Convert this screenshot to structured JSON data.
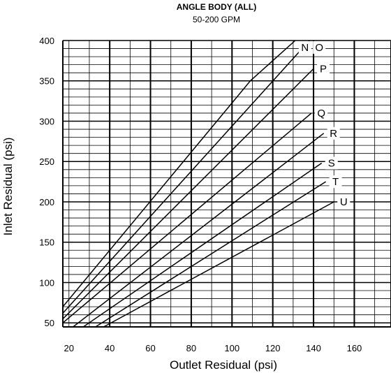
{
  "chart_data": {
    "type": "line",
    "title": "ANGLE BODY (ALL)",
    "subtitle": "50-200 GPM",
    "xlabel": "Outlet Residual (psi)",
    "ylabel": "Inlet Residual (psi)",
    "xlim": [
      17,
      178
    ],
    "ylim": [
      45,
      400
    ],
    "x_ticks": [
      20,
      40,
      60,
      80,
      100,
      120,
      140,
      160
    ],
    "y_ticks": [
      50,
      100,
      150,
      200,
      250,
      300,
      350,
      400
    ],
    "x_major_lines": [
      17,
      40,
      60,
      80,
      100,
      120,
      140,
      160,
      178
    ],
    "x_minor_step": 10,
    "y_minor_step": 10,
    "grid": true,
    "series": [
      {
        "name": "N",
        "points": [
          [
            17,
            70
          ],
          [
            109,
            350
          ],
          [
            131,
            400
          ]
        ]
      },
      {
        "name": "O",
        "points": [
          [
            17,
            62
          ],
          [
            138,
            400
          ]
        ]
      },
      {
        "name": "P",
        "points": [
          [
            17,
            55
          ],
          [
            140,
            365
          ]
        ]
      },
      {
        "name": "Q",
        "points": [
          [
            17,
            50
          ],
          [
            139,
            310
          ]
        ]
      },
      {
        "name": "R",
        "points": [
          [
            22,
            45
          ],
          [
            145,
            285
          ]
        ]
      },
      {
        "name": "S",
        "points": [
          [
            27,
            45
          ],
          [
            144,
            248
          ]
        ]
      },
      {
        "name": "T",
        "points": [
          [
            33,
            45
          ],
          [
            146,
            225
          ]
        ]
      },
      {
        "name": "U",
        "points": [
          [
            37,
            45
          ],
          [
            150,
            200
          ]
        ]
      }
    ]
  }
}
